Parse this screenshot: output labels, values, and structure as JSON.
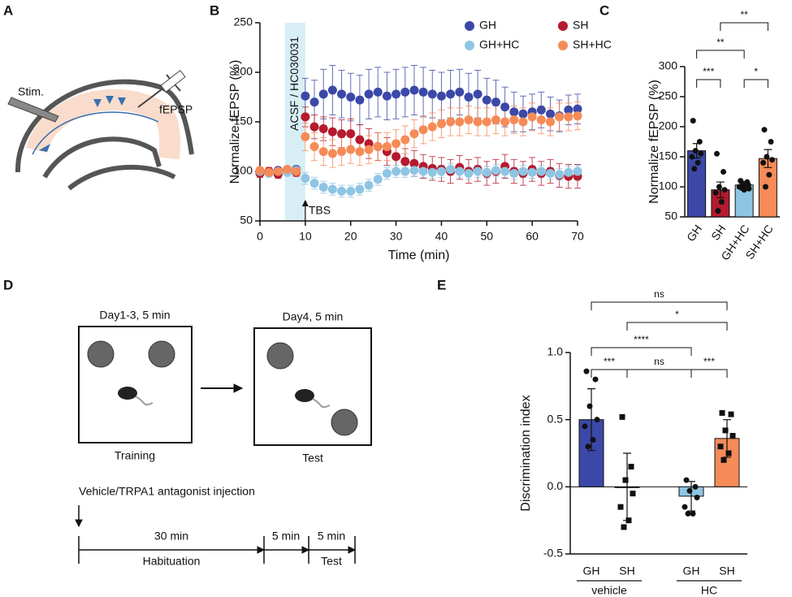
{
  "panel_labels": [
    "A",
    "B",
    "C",
    "D",
    "E"
  ],
  "panel_a": {
    "stim": "Stim.",
    "record": "fEPSP"
  },
  "panel_d": {
    "training_time": "Day1-3, 5 min",
    "training": "Training",
    "test_time": "Day4, 5 min",
    "test": "Test",
    "injection": "Vehicle/TRPA1 antagonist injection",
    "timeline": [
      {
        "duration": "30 min",
        "phase": "Habituation"
      },
      {
        "duration": "5 min"
      },
      {
        "duration": "5 min",
        "phase": "Test"
      }
    ]
  },
  "chart_data": [
    {
      "type": "scatter",
      "xlabel": "Time (min)",
      "ylabel": "Normalize fEPSP (%)",
      "xlim": [
        0,
        70
      ],
      "xticks": [
        0,
        10,
        20,
        30,
        40,
        50,
        60,
        70
      ],
      "ylim": [
        50,
        250
      ],
      "yticks": [
        50,
        100,
        150,
        200,
        250
      ],
      "shade_x": [
        5.5,
        10
      ],
      "shade_label": "ACSF / HC030031",
      "arrow": {
        "text": "TBS",
        "x": 10
      },
      "x": [
        0,
        2,
        4,
        6,
        8,
        10,
        12,
        14,
        16,
        18,
        20,
        22,
        24,
        26,
        28,
        30,
        32,
        34,
        36,
        38,
        40,
        42,
        44,
        46,
        48,
        50,
        52,
        54,
        56,
        58,
        60,
        62,
        64,
        66,
        68,
        70
      ],
      "series": [
        {
          "name": "GH",
          "color": "#3b48a8",
          "values": [
            100,
            99,
            101,
            100,
            102,
            176,
            170,
            178,
            182,
            178,
            175,
            172,
            178,
            180,
            176,
            178,
            180,
            182,
            180,
            178,
            176,
            178,
            180,
            175,
            178,
            172,
            170,
            165,
            160,
            158,
            160,
            162,
            158,
            156,
            162,
            163
          ],
          "errors": [
            3,
            3,
            3,
            3,
            3,
            18,
            22,
            25,
            25,
            24,
            24,
            25,
            25,
            25,
            24,
            25,
            25,
            25,
            25,
            24,
            24,
            24,
            23,
            24,
            24,
            22,
            22,
            20,
            20,
            18,
            18,
            18,
            17,
            16,
            15,
            15
          ]
        },
        {
          "name": "SH",
          "color": "#b51a2e",
          "values": [
            98,
            100,
            97,
            101,
            99,
            155,
            145,
            143,
            140,
            138,
            138,
            132,
            128,
            125,
            120,
            115,
            110,
            108,
            105,
            103,
            102,
            100,
            104,
            100,
            102,
            98,
            100,
            105,
            100,
            98,
            102,
            98,
            100,
            96,
            95,
            95
          ],
          "errors": [
            4,
            4,
            4,
            4,
            4,
            10,
            12,
            12,
            14,
            14,
            15,
            15,
            15,
            14,
            14,
            14,
            13,
            13,
            12,
            12,
            12,
            12,
            12,
            12,
            12,
            12,
            12,
            12,
            12,
            12,
            12,
            12,
            12,
            12,
            12,
            12
          ]
        },
        {
          "name": "GH+HC",
          "color": "#8ec5e3",
          "values": [
            100,
            98,
            100,
            99,
            101,
            93,
            88,
            84,
            82,
            80,
            80,
            82,
            86,
            92,
            98,
            100,
            100,
            101,
            100,
            99,
            100,
            102,
            100,
            98,
            100,
            99,
            101,
            100,
            98,
            100,
            99,
            100,
            98,
            97,
            99,
            100
          ],
          "errors": [
            3,
            3,
            3,
            3,
            3,
            6,
            6,
            6,
            6,
            6,
            6,
            6,
            6,
            6,
            6,
            6,
            6,
            6,
            6,
            6,
            6,
            6,
            6,
            6,
            6,
            6,
            6,
            6,
            6,
            6,
            6,
            6,
            6,
            6,
            6,
            6
          ]
        },
        {
          "name": "SH+HC",
          "color": "#f68b57",
          "values": [
            101,
            99,
            100,
            102,
            100,
            135,
            125,
            120,
            118,
            120,
            122,
            120,
            122,
            125,
            125,
            128,
            132,
            138,
            142,
            145,
            148,
            150,
            150,
            152,
            150,
            150,
            152,
            150,
            152,
            150,
            155,
            152,
            150,
            155,
            155,
            156
          ],
          "errors": [
            3,
            3,
            3,
            3,
            3,
            14,
            14,
            14,
            14,
            14,
            14,
            14,
            14,
            14,
            14,
            14,
            14,
            14,
            14,
            14,
            14,
            14,
            14,
            14,
            14,
            14,
            14,
            14,
            14,
            14,
            14,
            14,
            14,
            14,
            14,
            14
          ]
        }
      ]
    },
    {
      "type": "bar",
      "ylabel": "Normalize fEPSP (%)",
      "ylim": [
        50,
        300
      ],
      "yticks": [
        50,
        100,
        150,
        200,
        250,
        300
      ],
      "categories": [
        "GH",
        "SH",
        "GH+HC",
        "SH+HC"
      ],
      "colors": [
        "#3b48a8",
        "#b51a2e",
        "#8ec5e3",
        "#f68b57"
      ],
      "values": [
        160,
        95,
        103,
        147
      ],
      "errors": [
        12,
        13,
        4,
        15
      ],
      "points": [
        [
          210,
          175,
          160,
          155,
          150,
          140,
          130
        ],
        [
          155,
          125,
          100,
          95,
          90,
          75,
          60
        ],
        [
          110,
          108,
          105,
          103,
          100,
          100,
          98,
          97,
          95
        ],
        [
          195,
          175,
          150,
          145,
          140,
          120,
          100
        ]
      ],
      "markers": [
        "circle",
        "circle",
        "circle",
        "circle"
      ],
      "annotations": [
        {
          "label": "***",
          "between": [
            0,
            1
          ]
        },
        {
          "label": "*",
          "between": [
            2,
            3
          ]
        },
        {
          "label": "**",
          "between": [
            0,
            2
          ]
        },
        {
          "label": "**",
          "between": [
            1,
            3
          ]
        }
      ]
    },
    {
      "type": "bar",
      "ylabel": "Discrimination index",
      "ylim": [
        -0.5,
        1
      ],
      "yticks": [
        -0.5,
        {
          "value": 0,
          "label": "0.0"
        },
        0.5,
        {
          "value": 1,
          "label": "1.0"
        }
      ],
      "categories": [
        "GH",
        "SH",
        "GH",
        "SH"
      ],
      "colors": [
        "#3b48a8",
        "#b51a2e",
        "#8ec5e3",
        "#f68b57"
      ],
      "groups": [
        {
          "name": "vehicle",
          "members": [
            0,
            1
          ]
        },
        {
          "name": "HC",
          "members": [
            2,
            3
          ]
        }
      ],
      "values": [
        0.5,
        0.0,
        -0.07,
        0.36
      ],
      "errors": [
        0.23,
        0.25,
        0.11,
        0.14
      ],
      "points": [
        [
          0.86,
          0.8,
          0.6,
          0.5,
          0.45,
          0.35,
          0.3
        ],
        [
          0.52,
          0.15,
          0.05,
          -0.05,
          -0.15,
          -0.25,
          -0.3
        ],
        [
          0.05,
          0.0,
          -0.03,
          -0.08,
          -0.15,
          -0.2,
          -0.2
        ],
        [
          0.55,
          0.54,
          0.42,
          0.38,
          0.3,
          0.25,
          0.2
        ]
      ],
      "markers": [
        "circle",
        "square",
        "circle",
        "square"
      ],
      "annotations": [
        {
          "label": "***",
          "between": [
            0,
            1
          ]
        },
        {
          "label": "ns",
          "between": [
            1,
            2
          ]
        },
        {
          "label": "***",
          "between": [
            2,
            3
          ]
        },
        {
          "label": "****",
          "between": [
            0,
            2
          ]
        },
        {
          "label": "*",
          "between": [
            1,
            3
          ]
        },
        {
          "label": "ns",
          "between": [
            0,
            3
          ]
        }
      ]
    }
  ]
}
